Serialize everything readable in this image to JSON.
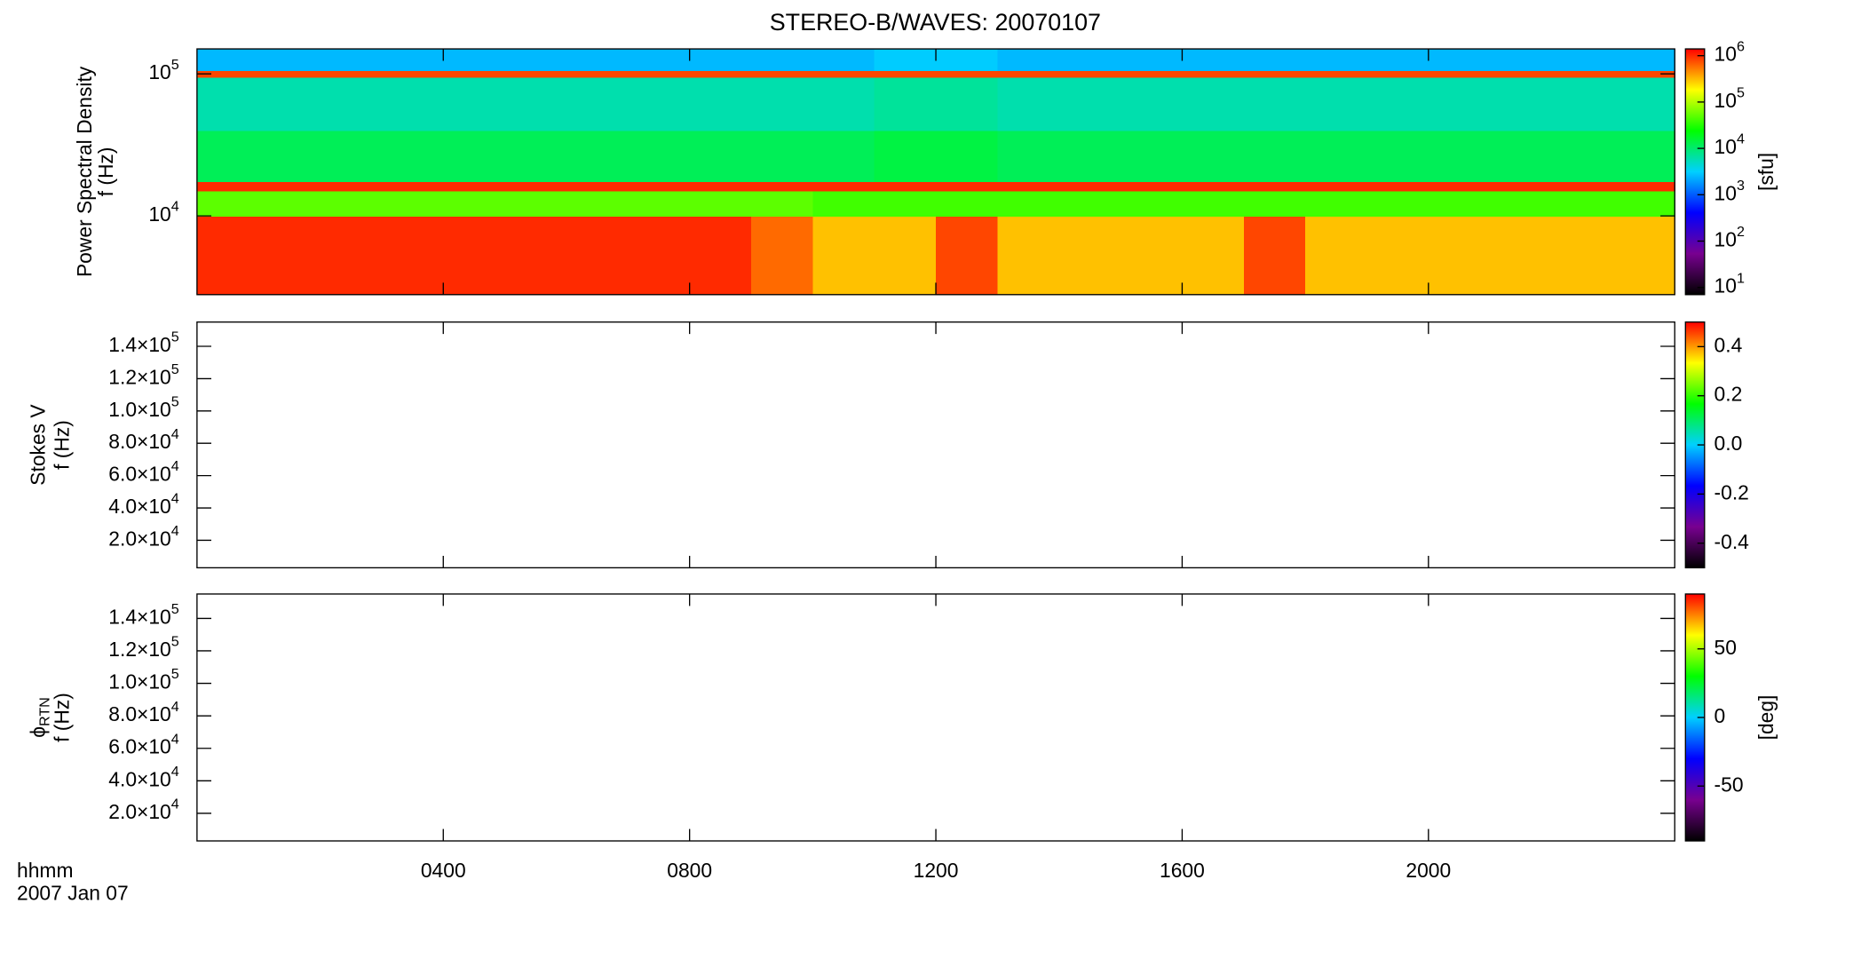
{
  "title": "STEREO-B/WAVES: 20070107",
  "xlabel": [
    "hhmm",
    "2007 Jan 07"
  ],
  "xlim": [
    0,
    24
  ],
  "xticks": [
    {
      "value": 4,
      "label": "0400"
    },
    {
      "value": 8,
      "label": "0800"
    },
    {
      "value": 12,
      "label": "1200"
    },
    {
      "value": 16,
      "label": "1600"
    },
    {
      "value": 20,
      "label": "2000"
    }
  ],
  "chart_data": [
    {
      "type": "heatmap",
      "ylabel": [
        "Power Spectral Density",
        "f (Hz)"
      ],
      "ylog": true,
      "ylim": [
        2790,
        150000
      ],
      "yticks": [
        {
          "value": 10000,
          "label": {
            "mantissa": "10",
            "exponent": "4"
          }
        },
        {
          "value": 100000,
          "label": {
            "mantissa": "10",
            "exponent": "5"
          }
        }
      ],
      "xbins": [
        0,
        1,
        2,
        3,
        4,
        5,
        6,
        7,
        8,
        9,
        10,
        11,
        12,
        13,
        14,
        15,
        16,
        17,
        18,
        19,
        20,
        21,
        22,
        23,
        24
      ],
      "ybins": [
        2790,
        10000,
        15000,
        17500,
        40000,
        95000,
        106000,
        150000
      ],
      "z": [
        [
          1000000,
          1000000,
          1000000,
          1000000,
          1000000,
          1000000,
          1000000,
          1000000,
          1000000,
          600000,
          300000,
          300000,
          800000,
          300000,
          300000,
          300000,
          300000,
          800000,
          300000,
          300000,
          300000,
          300000,
          300000,
          300000
        ],
        [
          50000,
          50000,
          50000,
          50000,
          50000,
          50000,
          50000,
          50000,
          50000,
          50000,
          40000,
          40000,
          40000,
          40000,
          40000,
          40000,
          40000,
          40000,
          40000,
          40000,
          40000,
          40000,
          40000,
          40000
        ],
        [
          1000000,
          1000000,
          1000000,
          1000000,
          1000000,
          1000000,
          1000000,
          1000000,
          1000000,
          1000000,
          1000000,
          1000000,
          1000000,
          1000000,
          1000000,
          1000000,
          1000000,
          1000000,
          1000000,
          1000000,
          1000000,
          1000000,
          1000000,
          1000000
        ],
        [
          12000,
          12000,
          12000,
          12000,
          12000,
          12000,
          12000,
          12000,
          12000,
          12000,
          12000,
          14000,
          14000,
          12000,
          12000,
          12000,
          12000,
          12000,
          12000,
          12000,
          12000,
          12000,
          12000,
          12000
        ],
        [
          6000,
          6000,
          6000,
          6000,
          6000,
          6000,
          6000,
          6000,
          6000,
          6000,
          6000,
          7000,
          7000,
          6000,
          6000,
          6000,
          6000,
          6000,
          6000,
          6000,
          6000,
          6000,
          6000,
          6000
        ],
        [
          800000,
          800000,
          800000,
          800000,
          800000,
          800000,
          800000,
          800000,
          800000,
          800000,
          800000,
          800000,
          800000,
          800000,
          800000,
          800000,
          800000,
          800000,
          800000,
          800000,
          800000,
          800000,
          800000,
          800000
        ],
        [
          2500,
          2500,
          2500,
          2500,
          2500,
          2500,
          2500,
          2500,
          2500,
          2500,
          2500,
          3000,
          3000,
          2500,
          2500,
          2500,
          2500,
          2500,
          2500,
          2500,
          2500,
          2500,
          2500,
          2500
        ]
      ],
      "colorbar_label": "[sfu]",
      "zlog": true,
      "zlim": [
        7,
        1400000
      ],
      "zticks": [
        {
          "value": 10,
          "label": {
            "mantissa": "10",
            "exponent": "1"
          }
        },
        {
          "value": 100,
          "label": {
            "mantissa": "10",
            "exponent": "2"
          }
        },
        {
          "value": 1000,
          "label": {
            "mantissa": "10",
            "exponent": "3"
          }
        },
        {
          "value": 10000,
          "label": {
            "mantissa": "10",
            "exponent": "4"
          }
        },
        {
          "value": 100000,
          "label": {
            "mantissa": "10",
            "exponent": "5"
          }
        },
        {
          "value": 1000000,
          "label": {
            "mantissa": "10",
            "exponent": "6"
          }
        }
      ],
      "colorscale": [
        "#000000",
        "#780090",
        "#0000ff",
        "#00d0ff",
        "#00ff00",
        "#ffff00",
        "#ff0000"
      ]
    },
    {
      "type": "heatmap",
      "ylabel": [
        "Stokes V",
        "f (Hz)"
      ],
      "ylog": false,
      "ylim": [
        3000,
        155000
      ],
      "yticks": [
        {
          "value": 20000,
          "label": {
            "mantissa": "2.0×10",
            "exponent": "4"
          }
        },
        {
          "value": 40000,
          "label": {
            "mantissa": "4.0×10",
            "exponent": "4"
          }
        },
        {
          "value": 60000,
          "label": {
            "mantissa": "6.0×10",
            "exponent": "4"
          }
        },
        {
          "value": 80000,
          "label": {
            "mantissa": "8.0×10",
            "exponent": "4"
          }
        },
        {
          "value": 100000,
          "label": {
            "mantissa": "1.0×10",
            "exponent": "5"
          }
        },
        {
          "value": 120000,
          "label": {
            "mantissa": "1.2×10",
            "exponent": "5"
          }
        },
        {
          "value": 140000,
          "label": {
            "mantissa": "1.4×10",
            "exponent": "5"
          }
        }
      ],
      "zlog": false,
      "zlim": [
        -0.5,
        0.5
      ],
      "zticks": [
        -0.4,
        -0.2,
        {
          "value": 0,
          "label": "0.0"
        },
        0.2,
        0.4
      ],
      "colorscale": [
        "#000000",
        "#780090",
        "#0000ff",
        "#00d0ff",
        "#00ff00",
        "#ffff00",
        "#ff0000"
      ]
    },
    {
      "type": "heatmap",
      "ylabel": [
        {
          "text": "ϕ",
          "sub": "RTN"
        },
        "f (Hz)"
      ],
      "ylog": false,
      "ylim": [
        3000,
        155000
      ],
      "yticks": [
        {
          "value": 20000,
          "label": {
            "mantissa": "2.0×10",
            "exponent": "4"
          }
        },
        {
          "value": 40000,
          "label": {
            "mantissa": "4.0×10",
            "exponent": "4"
          }
        },
        {
          "value": 60000,
          "label": {
            "mantissa": "6.0×10",
            "exponent": "4"
          }
        },
        {
          "value": 80000,
          "label": {
            "mantissa": "8.0×10",
            "exponent": "4"
          }
        },
        {
          "value": 100000,
          "label": {
            "mantissa": "1.0×10",
            "exponent": "5"
          }
        },
        {
          "value": 120000,
          "label": {
            "mantissa": "1.2×10",
            "exponent": "5"
          }
        },
        {
          "value": 140000,
          "label": {
            "mantissa": "1.4×10",
            "exponent": "5"
          }
        }
      ],
      "colorbar_label": "[deg]",
      "zlog": false,
      "zlim": [
        -90,
        90
      ],
      "zticks": [
        -50,
        0,
        50
      ],
      "colorscale": [
        "#000000",
        "#780090",
        "#0000ff",
        "#00d0ff",
        "#00ff00",
        "#ffff00",
        "#ff0000"
      ]
    }
  ]
}
